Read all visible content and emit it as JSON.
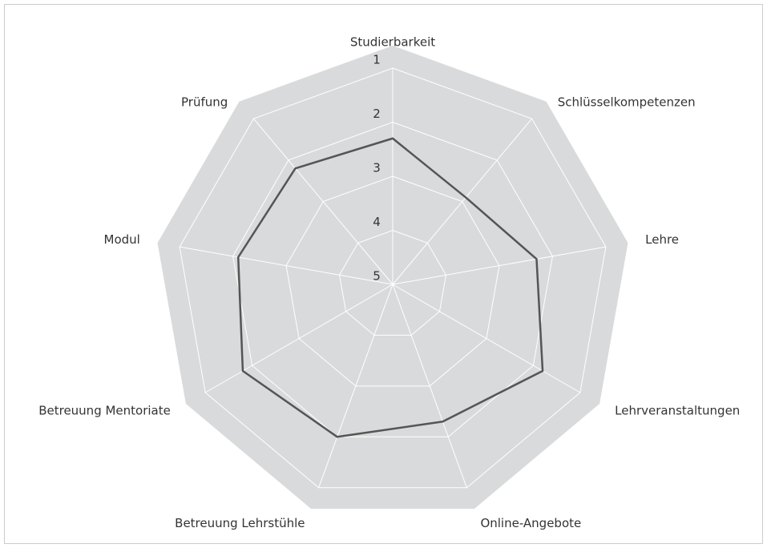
{
  "chart_data": {
    "type": "radar",
    "categories": [
      "Studierbarkeit",
      "Schlüsselkompetenzen",
      "Lehre",
      "Lehrveranstaltungen",
      "Online-Angebote",
      "Betreuung Lehrstühle",
      "Betreuung Mentoriate",
      "Modul",
      "Prüfung"
    ],
    "values": [
      2.3,
      2.9,
      2.3,
      1.8,
      2.3,
      2.0,
      1.8,
      2.1,
      2.2
    ],
    "color": "#555555",
    "rlim": [
      5,
      1
    ],
    "rticks": [
      1,
      2,
      3,
      4,
      5
    ],
    "grid": true
  }
}
